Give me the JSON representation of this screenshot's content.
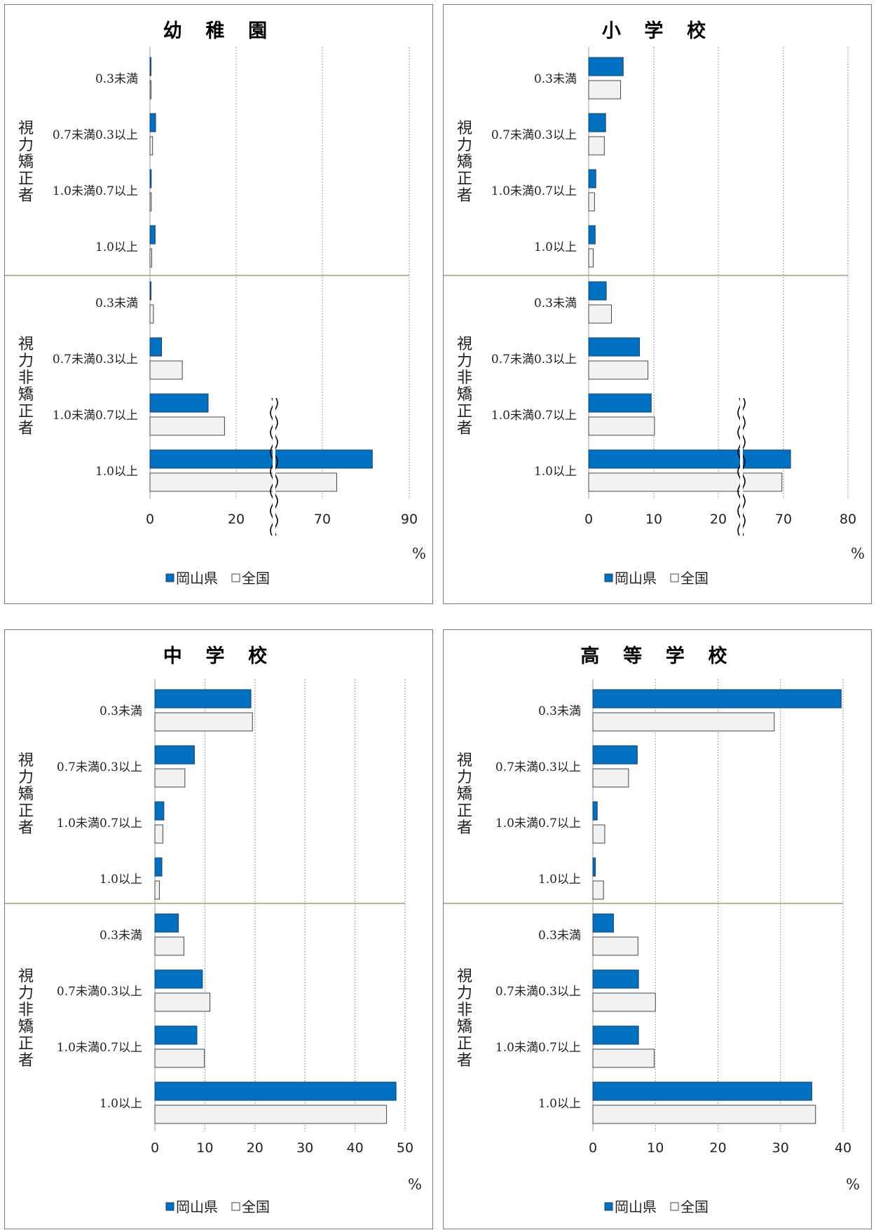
{
  "legend": {
    "series1": "岡山県",
    "series2": "全国"
  },
  "unit": "%",
  "colors": {
    "series1": "#0070c0",
    "series2": "#f2f2f2",
    "separator": "#a59a7a"
  },
  "groups": [
    "視力矯正者",
    "視力非矯正者"
  ],
  "categories": [
    "0.3未満",
    "0.7未満0.3以上",
    "1.0未満0.7以上",
    "1.0以上",
    "0.3未満",
    "0.7未満0.3以上",
    "1.0未満0.7以上",
    "1.0以上"
  ],
  "chart_data": [
    {
      "type": "bar",
      "title": "幼 稚 園",
      "categories": [
        "0.3未満",
        "0.7未満0.3以上",
        "1.0未満0.7以上",
        "1.0以上",
        "0.3未満",
        "0.7未満0.3以上",
        "1.0未満0.7以上",
        "1.0以上"
      ],
      "groups": [
        {
          "name": "視力矯正者",
          "categories": 4
        },
        {
          "name": "視力非矯正者",
          "categories": 4
        }
      ],
      "series": [
        {
          "name": "岡山県",
          "values": [
            0.1,
            1.3,
            0.3,
            1.2,
            0.2,
            2.7,
            13.5,
            81.5
          ]
        },
        {
          "name": "全国",
          "values": [
            0.1,
            0.6,
            0.3,
            0.4,
            0.8,
            7.5,
            17.3,
            73.3
          ]
        }
      ],
      "x_ticks": [
        0,
        20,
        70,
        90
      ],
      "axis_break": {
        "lower": 20,
        "upper": 70
      },
      "xlim": [
        0,
        90
      ]
    },
    {
      "type": "bar",
      "title": "小 学 校",
      "categories": [
        "0.3未満",
        "0.7未満0.3以上",
        "1.0未満0.7以上",
        "1.0以上",
        "0.3未満",
        "0.7未満0.3以上",
        "1.0未満0.7以上",
        "1.0以上"
      ],
      "groups": [
        {
          "name": "視力矯正者",
          "categories": 4
        },
        {
          "name": "視力非矯正者",
          "categories": 4
        }
      ],
      "series": [
        {
          "name": "岡山県",
          "values": [
            5.3,
            2.6,
            1.1,
            1.0,
            2.7,
            7.8,
            9.6,
            71.1
          ]
        },
        {
          "name": "全国",
          "values": [
            4.9,
            2.4,
            0.9,
            0.7,
            3.5,
            9.1,
            10.1,
            68.8
          ]
        }
      ],
      "x_ticks": [
        0,
        10,
        20,
        70,
        80
      ],
      "axis_break": {
        "lower": 24,
        "upper": 66
      },
      "xlim": [
        0,
        80
      ]
    },
    {
      "type": "bar",
      "title": "中 学 校",
      "categories": [
        "0.3未満",
        "0.7未満0.3以上",
        "1.0未満0.7以上",
        "1.0以上",
        "0.3未満",
        "0.7未満0.3以上",
        "1.0未満0.7以上",
        "1.0以上"
      ],
      "groups": [
        {
          "name": "視力矯正者",
          "categories": 4
        },
        {
          "name": "視力非矯正者",
          "categories": 4
        }
      ],
      "series": [
        {
          "name": "岡山県",
          "values": [
            19.2,
            7.9,
            1.8,
            1.4,
            4.7,
            9.5,
            8.4,
            48.2
          ]
        },
        {
          "name": "全国",
          "values": [
            19.5,
            6.0,
            1.6,
            0.9,
            5.8,
            11.0,
            9.9,
            46.3
          ]
        }
      ],
      "x_ticks": [
        0,
        10,
        20,
        30,
        40,
        50
      ],
      "xlim": [
        0,
        50
      ]
    },
    {
      "type": "bar",
      "title": "高 等 学 校",
      "categories": [
        "0.3未満",
        "0.7未満0.3以上",
        "1.0未満0.7以上",
        "1.0以上",
        "0.3未満",
        "0.7未満0.3以上",
        "1.0未満0.7以上",
        "1.0以上"
      ],
      "groups": [
        {
          "name": "視力矯正者",
          "categories": 4
        },
        {
          "name": "視力非矯正者",
          "categories": 4
        }
      ],
      "series": [
        {
          "name": "岡山県",
          "values": [
            39.7,
            7.1,
            0.7,
            0.4,
            3.3,
            7.3,
            7.3,
            35.0
          ]
        },
        {
          "name": "全国",
          "values": [
            29.0,
            5.7,
            1.9,
            1.7,
            7.2,
            10.0,
            9.8,
            35.6
          ]
        }
      ],
      "x_ticks": [
        0,
        10,
        20,
        30,
        40
      ],
      "xlim": [
        0,
        40
      ]
    }
  ]
}
